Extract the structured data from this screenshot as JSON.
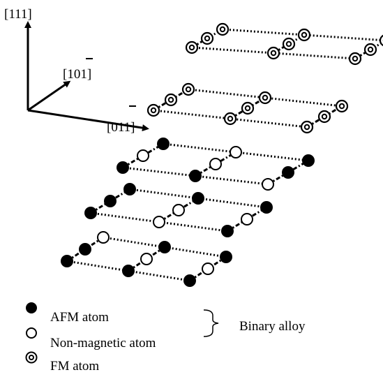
{
  "axes": {
    "labels": [
      "[111]",
      "[101]",
      "[011]"
    ]
  },
  "legend": {
    "items": [
      "AFM atom",
      "Non-magnetic atom",
      "FM atom"
    ],
    "group": "Binary alloy"
  }
}
